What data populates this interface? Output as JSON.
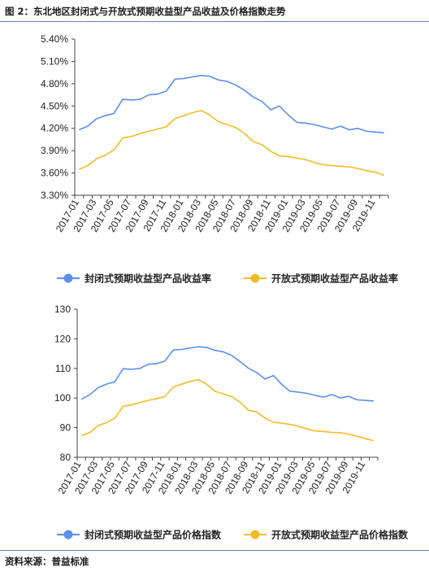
{
  "figure": {
    "title": "图 2：东北地区封闭式与开放式预期收益型产品收益及价格指数走势",
    "source": "资料来源：普益标准"
  },
  "colors": {
    "series1": "#5b8ff0",
    "series2": "#f5bb22",
    "axis": "#444444"
  },
  "chart_data": [
    {
      "type": "line",
      "x": [
        "2017-01",
        "2017-02",
        "2017-03",
        "2017-04",
        "2017-05",
        "2017-06",
        "2017-07",
        "2017-08",
        "2017-09",
        "2017-10",
        "2017-11",
        "2017-12",
        "2018-01",
        "2018-02",
        "2018-03",
        "2018-04",
        "2018-05",
        "2018-06",
        "2018-07",
        "2018-08",
        "2018-09",
        "2018-10",
        "2018-11",
        "2018-12",
        "2019-01",
        "2019-02",
        "2019-03",
        "2019-04",
        "2019-05",
        "2019-06",
        "2019-07",
        "2019-08",
        "2019-09",
        "2019-10",
        "2019-11",
        "2019-12"
      ],
      "xticks": [
        "2017-01",
        "2017-03",
        "2017-05",
        "2017-07",
        "2017-09",
        "2017-11",
        "2018-01",
        "2018-03",
        "2018-05",
        "2018-07",
        "2018-09",
        "2018-11",
        "2019-01",
        "2019-03",
        "2019-05",
        "2019-07",
        "2019-09",
        "2019-11"
      ],
      "yticks": [
        "5.40%",
        "5.10%",
        "4.80%",
        "4.50%",
        "4.20%",
        "3.90%",
        "3.60%",
        "3.30%"
      ],
      "ylim": [
        3.3,
        5.4
      ],
      "series": [
        {
          "name": "封闭式预期收益型产品收益率",
          "values": [
            4.18,
            4.23,
            4.33,
            4.37,
            4.4,
            4.59,
            4.58,
            4.59,
            4.65,
            4.66,
            4.7,
            4.86,
            4.87,
            4.89,
            4.91,
            4.9,
            4.85,
            4.83,
            4.78,
            4.71,
            4.62,
            4.56,
            4.45,
            4.5,
            4.38,
            4.28,
            4.27,
            4.25,
            4.22,
            4.19,
            4.23,
            4.18,
            4.2,
            4.16,
            4.15,
            4.14
          ]
        },
        {
          "name": "开放式预期收益型产品收益率",
          "values": [
            3.65,
            3.7,
            3.79,
            3.84,
            3.91,
            4.07,
            4.09,
            4.13,
            4.16,
            4.19,
            4.22,
            4.33,
            4.37,
            4.41,
            4.44,
            4.38,
            4.29,
            4.25,
            4.21,
            4.13,
            4.02,
            3.98,
            3.89,
            3.83,
            3.82,
            3.8,
            3.78,
            3.74,
            3.71,
            3.7,
            3.69,
            3.68,
            3.66,
            3.63,
            3.61,
            3.57
          ]
        }
      ]
    },
    {
      "type": "line",
      "x": [
        "2017-01",
        "2017-02",
        "2017-03",
        "2017-04",
        "2017-05",
        "2017-06",
        "2017-07",
        "2017-08",
        "2017-09",
        "2017-10",
        "2017-11",
        "2017-12",
        "2018-01",
        "2018-02",
        "2018-03",
        "2018-04",
        "2018-05",
        "2018-06",
        "2018-07",
        "2018-08",
        "2018-09",
        "2018-10",
        "2018-11",
        "2018-12",
        "2019-01",
        "2019-02",
        "2019-03",
        "2019-04",
        "2019-05",
        "2019-06",
        "2019-07",
        "2019-08",
        "2019-09",
        "2019-10",
        "2019-11",
        "2019-12"
      ],
      "xticks": [
        "2017-01",
        "2017-03",
        "2017-05",
        "2017-07",
        "2017-09",
        "2017-11",
        "2018-01",
        "2018-03",
        "2018-05",
        "2018-07",
        "2018-09",
        "2018-11",
        "2019-01",
        "2019-03",
        "2019-05",
        "2019-07",
        "2019-09",
        "2019-11"
      ],
      "yticks": [
        "130",
        "120",
        "110",
        "100",
        "90",
        "80"
      ],
      "ylim": [
        80,
        130
      ],
      "series": [
        {
          "name": "封闭式预期收益型产品价格指数",
          "values": [
            99.6,
            101.1,
            103.5,
            104.7,
            105.5,
            109.9,
            109.7,
            110.0,
            111.4,
            111.6,
            112.5,
            116.2,
            116.4,
            116.9,
            117.3,
            117.1,
            116.1,
            115.6,
            114.4,
            112.3,
            110.1,
            108.6,
            106.4,
            107.6,
            104.6,
            102.3,
            102.0,
            101.6,
            100.9,
            100.3,
            101.2,
            100.0,
            100.6,
            99.4,
            99.2,
            99.0
          ]
        },
        {
          "name": "开放式预期收益型产品价格指数",
          "values": [
            87.3,
            88.3,
            90.7,
            91.7,
            93.2,
            97.2,
            97.7,
            98.5,
            99.2,
            99.8,
            100.5,
            103.7,
            104.7,
            105.6,
            106.2,
            104.7,
            102.3,
            101.4,
            100.5,
            98.6,
            95.9,
            95.3,
            93.2,
            91.8,
            91.5,
            91.1,
            90.5,
            89.6,
            88.9,
            88.7,
            88.4,
            88.3,
            87.8,
            87.1,
            86.3,
            85.6
          ]
        }
      ]
    }
  ]
}
